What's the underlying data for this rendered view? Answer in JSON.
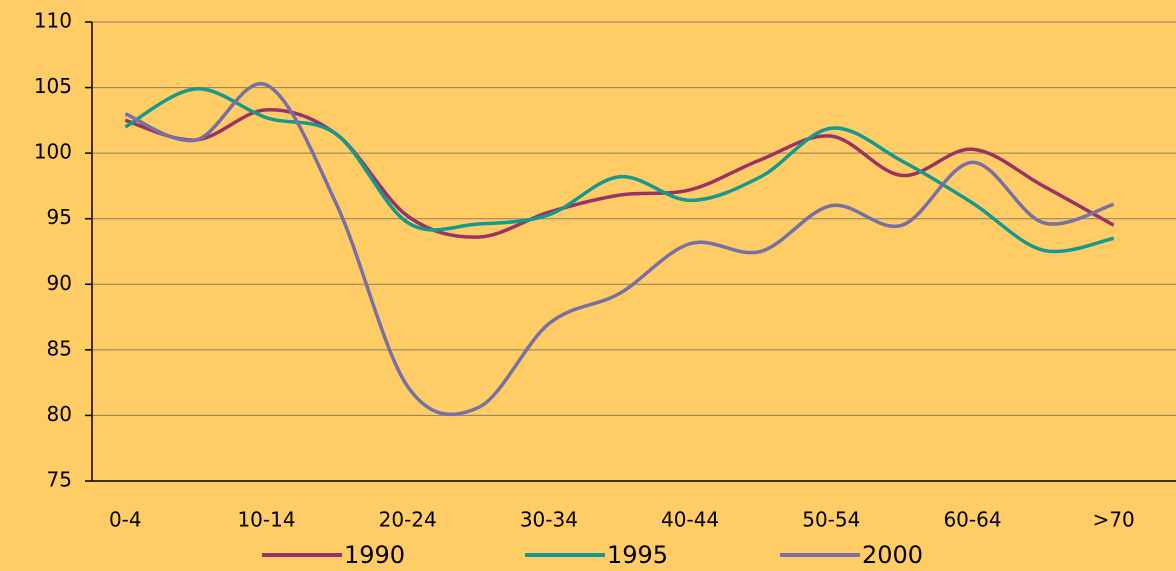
{
  "chart_data": {
    "type": "line",
    "categories": [
      "0-4",
      null,
      "10-14",
      null,
      "20-24",
      null,
      "30-34",
      null,
      "40-44",
      null,
      "50-54",
      null,
      "60-64",
      null,
      ">70"
    ],
    "series": [
      {
        "name": "1990",
        "color": "#993366",
        "values": [
          102.5,
          101,
          103.3,
          101.4,
          95.2,
          93.6,
          95.5,
          96.8,
          97.2,
          99.5,
          101.3,
          98.3,
          100.3,
          97.5,
          94.5
        ]
      },
      {
        "name": "1995",
        "color": "#14998c",
        "values": [
          102,
          104.9,
          102.7,
          101.4,
          94.7,
          94.6,
          95.3,
          98.2,
          96.4,
          98.2,
          101.9,
          99.4,
          96.2,
          92.6,
          93.5
        ]
      },
      {
        "name": "2000",
        "color": "#7770a3",
        "values": [
          103,
          101,
          105.2,
          96,
          82.2,
          80.6,
          87,
          89.3,
          93.1,
          92.5,
          96,
          94.5,
          99.3,
          94.7,
          96.1
        ]
      }
    ],
    "ylim": [
      75,
      110
    ],
    "yticks": [
      75,
      80,
      85,
      90,
      95,
      100,
      105,
      110
    ],
    "grid": true,
    "legend": "bottom"
  }
}
